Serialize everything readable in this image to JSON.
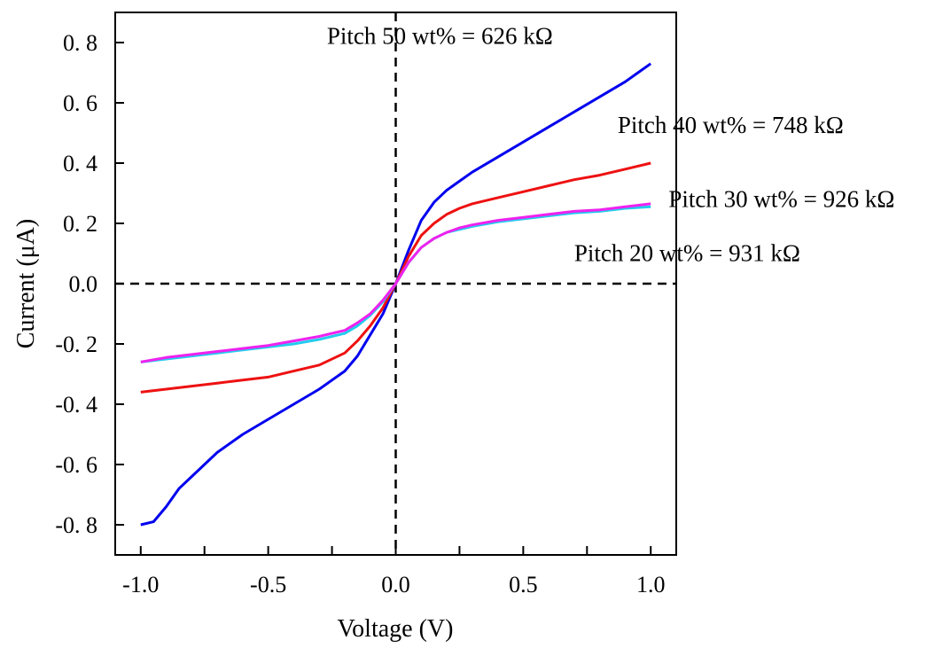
{
  "chart_data": {
    "type": "line",
    "title": "",
    "xlabel": "Voltage (V)",
    "ylabel": "Current (μA)",
    "xlim": [
      -1.1,
      1.1
    ],
    "ylim": [
      -0.9,
      0.9
    ],
    "grid": false,
    "reference_lines": {
      "x0_dashed": true,
      "y0_dashed": true
    },
    "x_ticks": [
      {
        "value": -1.0,
        "label": "-1.0"
      },
      {
        "value": -0.5,
        "label": "-0.5"
      },
      {
        "value": 0.0,
        "label": "0.0"
      },
      {
        "value": 0.5,
        "label": "0.5"
      },
      {
        "value": 1.0,
        "label": "1.0"
      }
    ],
    "x_minor_ticks": [
      -0.75,
      -0.25,
      0.25,
      0.75
    ],
    "y_ticks": [
      {
        "value": 0.8,
        "label": "0. 8"
      },
      {
        "value": 0.6,
        "label": "0. 6"
      },
      {
        "value": 0.4,
        "label": "0. 4"
      },
      {
        "value": 0.2,
        "label": "0. 2"
      },
      {
        "value": 0.0,
        "label": "0.0"
      },
      {
        "value": -0.2,
        "label": "-0. 2"
      },
      {
        "value": -0.4,
        "label": "-0. 4"
      },
      {
        "value": -0.6,
        "label": "-0. 6"
      },
      {
        "value": -0.8,
        "label": "-0. 8"
      }
    ],
    "series": [
      {
        "color": "#0000ee",
        "x": [
          -1.0,
          -0.95,
          -0.9,
          -0.85,
          -0.8,
          -0.7,
          -0.6,
          -0.5,
          -0.4,
          -0.3,
          -0.2,
          -0.15,
          -0.1,
          -0.05,
          0.0,
          0.05,
          0.1,
          0.15,
          0.2,
          0.25,
          0.3,
          0.4,
          0.5,
          0.6,
          0.7,
          0.8,
          0.9,
          0.95,
          1.0
        ],
        "y": [
          -0.8,
          -0.79,
          -0.74,
          -0.68,
          -0.64,
          -0.56,
          -0.5,
          -0.45,
          -0.4,
          -0.35,
          -0.29,
          -0.24,
          -0.17,
          -0.1,
          0.0,
          0.11,
          0.21,
          0.27,
          0.31,
          0.34,
          0.37,
          0.42,
          0.47,
          0.52,
          0.57,
          0.62,
          0.67,
          0.7,
          0.73
        ]
      },
      {
        "color": "#ee1111",
        "x": [
          -1.0,
          -0.9,
          -0.8,
          -0.7,
          -0.6,
          -0.5,
          -0.4,
          -0.3,
          -0.2,
          -0.15,
          -0.1,
          -0.05,
          0.0,
          0.05,
          0.1,
          0.15,
          0.2,
          0.25,
          0.3,
          0.4,
          0.5,
          0.6,
          0.7,
          0.8,
          0.9,
          1.0
        ],
        "y": [
          -0.36,
          -0.35,
          -0.34,
          -0.33,
          -0.32,
          -0.31,
          -0.29,
          -0.27,
          -0.23,
          -0.19,
          -0.14,
          -0.08,
          0.0,
          0.09,
          0.16,
          0.2,
          0.23,
          0.25,
          0.265,
          0.285,
          0.305,
          0.325,
          0.345,
          0.36,
          0.38,
          0.4
        ]
      },
      {
        "color": "#22ccee",
        "x": [
          -1.0,
          -0.9,
          -0.8,
          -0.7,
          -0.6,
          -0.5,
          -0.4,
          -0.3,
          -0.2,
          -0.15,
          -0.1,
          -0.05,
          0.0,
          0.05,
          0.1,
          0.15,
          0.2,
          0.25,
          0.3,
          0.4,
          0.5,
          0.6,
          0.7,
          0.8,
          0.9,
          1.0
        ],
        "y": [
          -0.26,
          -0.25,
          -0.24,
          -0.23,
          -0.22,
          -0.21,
          -0.2,
          -0.185,
          -0.165,
          -0.14,
          -0.105,
          -0.06,
          0.0,
          0.07,
          0.12,
          0.15,
          0.17,
          0.18,
          0.19,
          0.205,
          0.215,
          0.225,
          0.235,
          0.24,
          0.25,
          0.255
        ]
      },
      {
        "color": "#ee22ee",
        "x": [
          -1.0,
          -0.9,
          -0.8,
          -0.7,
          -0.6,
          -0.5,
          -0.4,
          -0.3,
          -0.2,
          -0.15,
          -0.1,
          -0.05,
          0.0,
          0.05,
          0.1,
          0.15,
          0.2,
          0.25,
          0.3,
          0.4,
          0.5,
          0.6,
          0.7,
          0.8,
          0.9,
          1.0
        ],
        "y": [
          -0.26,
          -0.245,
          -0.235,
          -0.225,
          -0.215,
          -0.205,
          -0.19,
          -0.175,
          -0.155,
          -0.13,
          -0.1,
          -0.055,
          0.0,
          0.07,
          0.12,
          0.15,
          0.17,
          0.185,
          0.195,
          0.21,
          0.22,
          0.23,
          0.24,
          0.245,
          0.255,
          0.265
        ]
      }
    ],
    "annotations": [
      {
        "text": "Pitch 50 wt% = 626 kΩ",
        "x": -0.27,
        "y": 0.795
      },
      {
        "text": "Pitch 40 wt% = 748 kΩ",
        "x": 0.87,
        "y": 0.5
      },
      {
        "text": "Pitch 30 wt% = 926 kΩ",
        "x": 1.07,
        "y": 0.255
      },
      {
        "text": "Pitch 20 wt% = 931 kΩ",
        "x": 0.7,
        "y": 0.075
      }
    ]
  }
}
